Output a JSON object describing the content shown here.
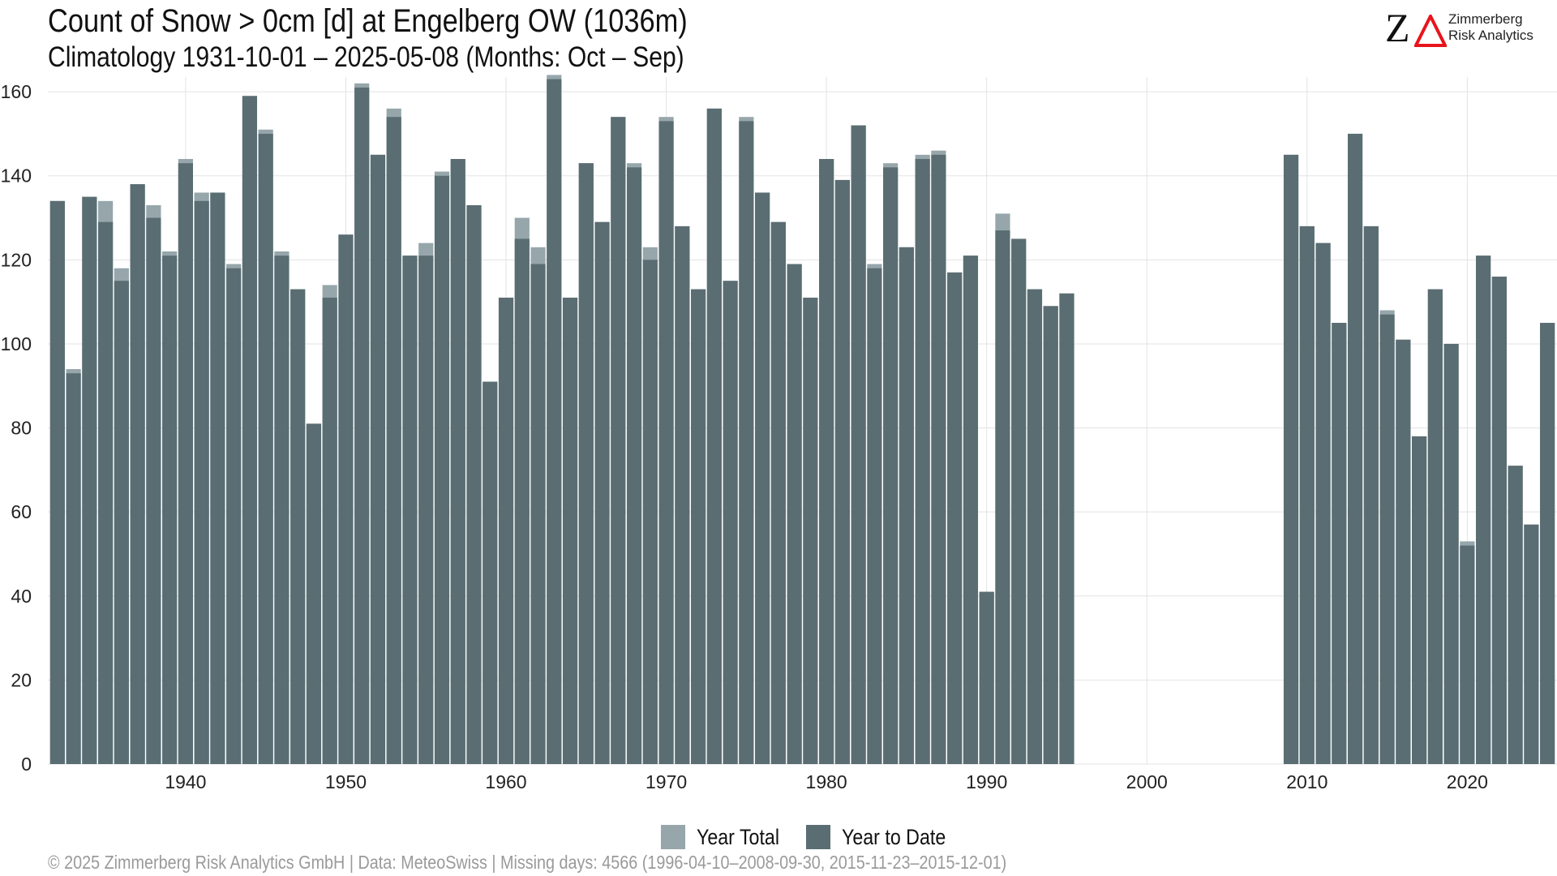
{
  "header": {
    "title": "Count of Snow > 0cm [d] at Engelberg  OW (1036m)",
    "subtitle": "Climatology 1931-10-01 – 2025-05-08 (Months: Oct – Sep)"
  },
  "logo": {
    "line1": "Zimmerberg",
    "line2": "Risk Analytics",
    "mark_letter": "Z",
    "accent_color": "#e8141b"
  },
  "legend": {
    "year_total_label": "Year Total",
    "year_to_date_label": "Year to Date"
  },
  "caption": "©  2025 Zimmerberg Risk Analytics GmbH | Data: MeteoSwiss | Missing days: 4566 (1996-04-10–2008-09-30, 2015-11-23–2015-12-01)",
  "colors": {
    "year_total": "#96a6ab",
    "year_to_date": "#5a6d72",
    "grid": "#e3e3e3"
  },
  "chart_data": {
    "type": "bar",
    "title": "Count of Snow > 0cm [d] at Engelberg  OW (1036m)",
    "subtitle": "Climatology 1931-10-01 – 2025-05-08 (Months: Oct – Sep)",
    "xlabel": "",
    "ylabel": "",
    "xlim": [
      1931.4,
      2025.6
    ],
    "ylim": [
      0,
      163.5
    ],
    "x_ticks": [
      1940,
      1950,
      1960,
      1970,
      1980,
      1990,
      2000,
      2010,
      2020
    ],
    "y_ticks": [
      0,
      20,
      40,
      60,
      80,
      100,
      120,
      140,
      160
    ],
    "grid": true,
    "legend_position": "bottom",
    "x": [
      1932,
      1933,
      1934,
      1935,
      1936,
      1937,
      1938,
      1939,
      1940,
      1941,
      1942,
      1943,
      1944,
      1945,
      1946,
      1947,
      1948,
      1949,
      1950,
      1951,
      1952,
      1953,
      1954,
      1955,
      1956,
      1957,
      1958,
      1959,
      1960,
      1961,
      1962,
      1963,
      1964,
      1965,
      1966,
      1967,
      1968,
      1969,
      1970,
      1971,
      1972,
      1973,
      1974,
      1975,
      1976,
      1977,
      1978,
      1979,
      1980,
      1981,
      1982,
      1983,
      1984,
      1985,
      1986,
      1987,
      1988,
      1989,
      1990,
      1991,
      1992,
      1993,
      1994,
      1995,
      2009,
      2010,
      2011,
      2012,
      2013,
      2014,
      2015,
      2016,
      2017,
      2018,
      2019,
      2020,
      2021,
      2022,
      2023,
      2024,
      2025
    ],
    "series": [
      {
        "name": "Year Total",
        "values": [
          134,
          94,
          135,
          134,
          118,
          138,
          133,
          122,
          144,
          136,
          136,
          119,
          159,
          151,
          122,
          113,
          81,
          114,
          126,
          162,
          145,
          156,
          121,
          124,
          141,
          144,
          133,
          91,
          111,
          130,
          123,
          164,
          111,
          143,
          129,
          154,
          143,
          123,
          154,
          128,
          113,
          156,
          115,
          154,
          136,
          129,
          119,
          111,
          144,
          139,
          152,
          119,
          143,
          123,
          145,
          146,
          117,
          121,
          41,
          131,
          125,
          113,
          109,
          112,
          145,
          128,
          124,
          105,
          150,
          128,
          108,
          101,
          78,
          113,
          100,
          53,
          121,
          116,
          71,
          57,
          105
        ]
      },
      {
        "name": "Year to Date",
        "values": [
          134,
          93,
          135,
          129,
          115,
          138,
          130,
          121,
          143,
          134,
          136,
          118,
          159,
          150,
          121,
          113,
          81,
          111,
          126,
          161,
          145,
          154,
          121,
          121,
          140,
          144,
          133,
          91,
          111,
          125,
          119,
          163,
          111,
          143,
          129,
          154,
          142,
          120,
          153,
          128,
          113,
          156,
          115,
          153,
          136,
          129,
          119,
          111,
          144,
          139,
          152,
          118,
          142,
          123,
          144,
          145,
          117,
          121,
          41,
          127,
          125,
          113,
          109,
          112,
          145,
          128,
          124,
          105,
          150,
          128,
          107,
          101,
          78,
          113,
          100,
          52,
          121,
          116,
          71,
          57,
          105
        ]
      }
    ]
  }
}
